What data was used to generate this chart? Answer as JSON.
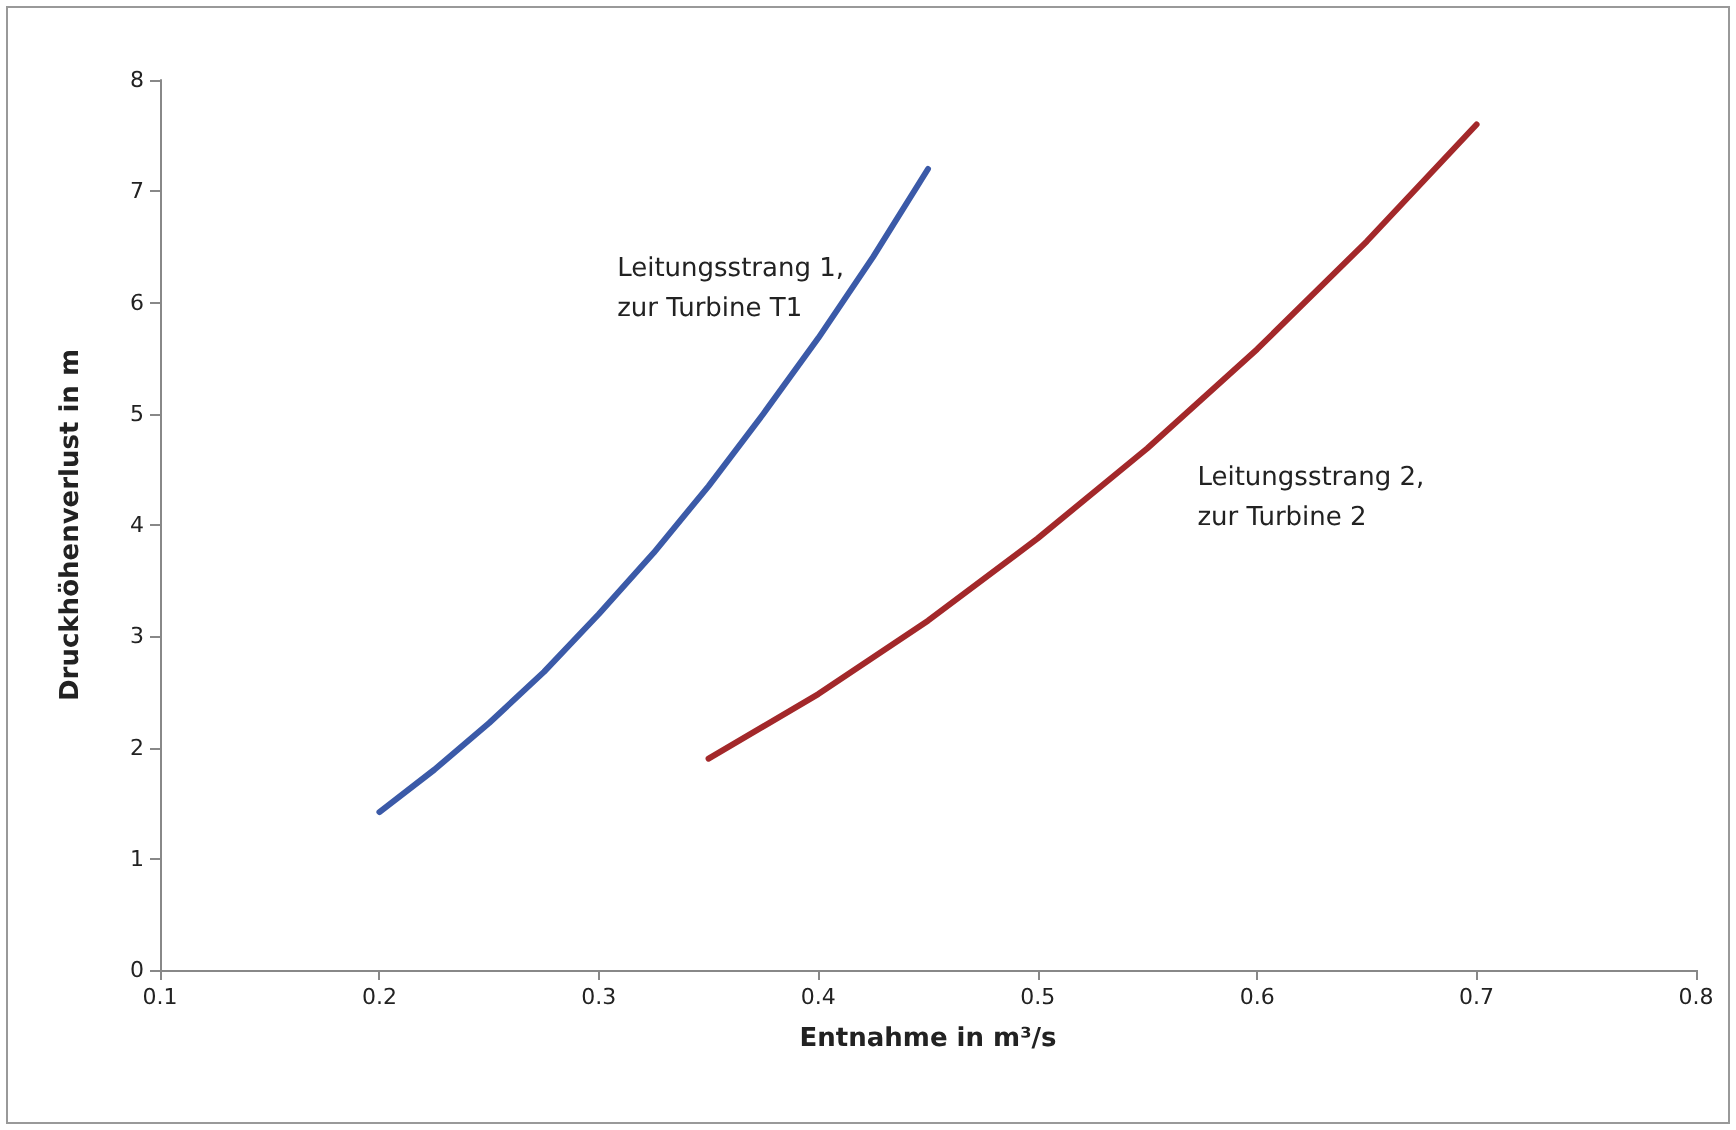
{
  "chart_data": {
    "type": "line",
    "xlabel": "Entnahme in m³/s",
    "ylabel": "Druckhöhenverlust in m",
    "series": [
      {
        "name": "Leitungsstrang 1,\nzur Turbine T1",
        "color": "#3b5aa8",
        "x": [
          0.2,
          0.225,
          0.25,
          0.275,
          0.3,
          0.325,
          0.35,
          0.375,
          0.4,
          0.425,
          0.45
        ],
        "values": [
          1.42,
          1.8,
          2.22,
          2.68,
          3.2,
          3.75,
          4.35,
          5.0,
          5.68,
          6.41,
          7.2
        ]
      },
      {
        "name": "Leitungsstrang 2,\nzur Turbine 2",
        "color": "#a3282a",
        "x": [
          0.35,
          0.4,
          0.45,
          0.5,
          0.55,
          0.6,
          0.65,
          0.7
        ],
        "values": [
          1.9,
          2.48,
          3.14,
          3.88,
          4.69,
          5.58,
          6.55,
          7.6
        ]
      }
    ],
    "xlim": [
      0.1,
      0.8
    ],
    "xticks": [
      0.1,
      0.2,
      0.3,
      0.4,
      0.5,
      0.6,
      0.7,
      0.8
    ],
    "ylim": [
      0,
      8
    ],
    "yticks": [
      0,
      1,
      2,
      3,
      4,
      5,
      6,
      7,
      8
    ],
    "grid": false,
    "legend": false,
    "marker": "none",
    "line_style": "solid"
  }
}
